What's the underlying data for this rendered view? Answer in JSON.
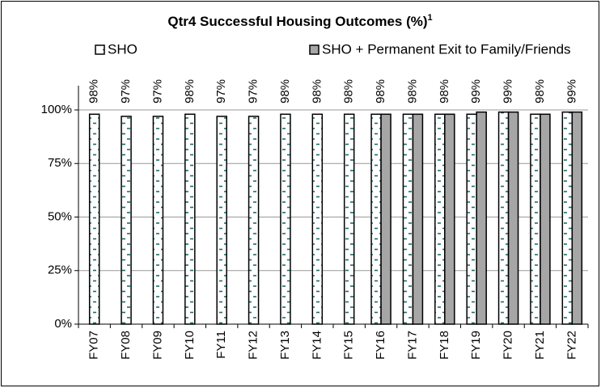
{
  "chart_data": {
    "type": "bar",
    "title": "Qtr4 Successful Housing Outcomes (%)",
    "title_note": "1",
    "categories": [
      "FY07",
      "FY08",
      "FY09",
      "FY10",
      "FY11",
      "FY12",
      "FY13",
      "FY14",
      "FY15",
      "FY16",
      "FY17",
      "FY18",
      "FY19",
      "FY20",
      "FY21",
      "FY22"
    ],
    "series": [
      {
        "name": "SHO",
        "color": "#ffffff",
        "pattern_color": "#1f6b6b",
        "values": [
          98,
          97,
          97,
          98,
          97,
          97,
          98,
          98,
          98,
          98,
          98,
          98,
          98,
          99,
          98,
          99
        ],
        "value_labels": [
          "98%",
          "97%",
          "97%",
          "98%",
          "97%",
          "97%",
          "98%",
          "98%",
          "98%",
          null,
          null,
          null,
          null,
          null,
          null,
          null
        ]
      },
      {
        "name": "SHO + Permanent Exit to Family/Friends",
        "color": "#a6a6a6",
        "values": [
          null,
          null,
          null,
          null,
          null,
          null,
          null,
          null,
          null,
          98,
          98,
          98,
          99,
          99,
          98,
          99
        ],
        "value_labels": [
          null,
          null,
          null,
          null,
          null,
          null,
          null,
          null,
          null,
          "98%",
          "98%",
          "98%",
          "99%",
          "99%",
          "98%",
          "99%"
        ]
      }
    ],
    "ylim": [
      0,
      100
    ],
    "yticks": [
      {
        "value": 0,
        "label": "0%"
      },
      {
        "value": 25,
        "label": "25%"
      },
      {
        "value": 50,
        "label": "50%"
      },
      {
        "value": 75,
        "label": "75%"
      },
      {
        "value": 100,
        "label": "100%"
      }
    ],
    "grid": true,
    "legend": "top"
  }
}
